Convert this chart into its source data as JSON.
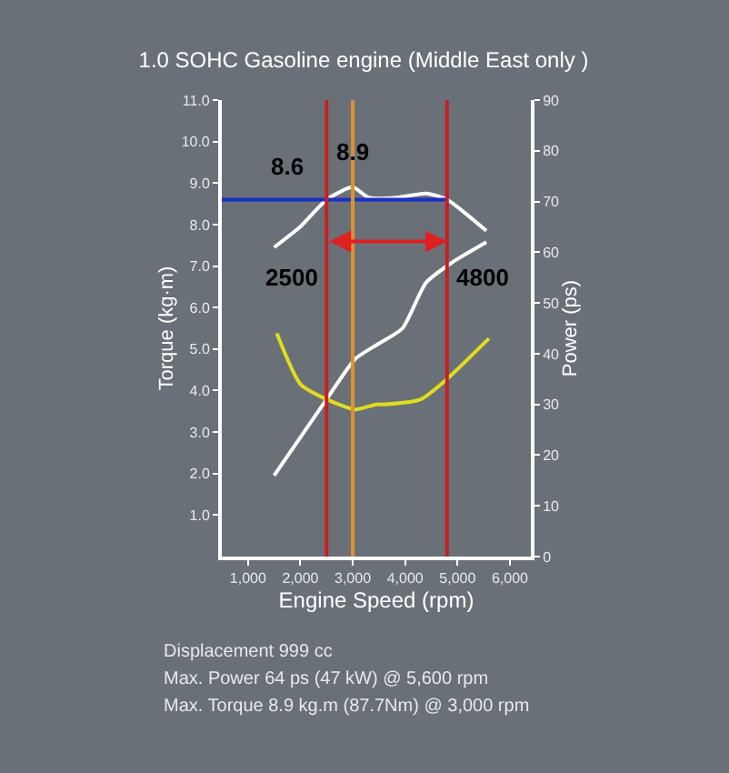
{
  "chart_data": {
    "type": "line",
    "title": "1.0 SOHC Gasoline engine (Middle East only )",
    "xlabel": "Engine Speed (rpm)",
    "ylabel": "Torque (kg·m)",
    "y2label": "Power (ps)",
    "xlim": [
      500,
      6400
    ],
    "xticks": [
      {
        "value": 1000,
        "label": "1,000"
      },
      {
        "value": 2000,
        "label": "2,000"
      },
      {
        "value": 3000,
        "label": "3,000"
      },
      {
        "value": 4000,
        "label": "4,000"
      },
      {
        "value": 5000,
        "label": "5,000"
      },
      {
        "value": 6000,
        "label": "6,000"
      }
    ],
    "ylim": [
      0,
      11
    ],
    "yticks": [
      {
        "value": 1,
        "label": "1.0"
      },
      {
        "value": 2,
        "label": "2.0"
      },
      {
        "value": 3,
        "label": "3.0"
      },
      {
        "value": 4,
        "label": "4.0"
      },
      {
        "value": 5,
        "label": "5.0"
      },
      {
        "value": 6,
        "label": "6.0"
      },
      {
        "value": 7,
        "label": "7.0"
      },
      {
        "value": 8,
        "label": "8.0"
      },
      {
        "value": 9,
        "label": "9.0"
      },
      {
        "value": 10,
        "label": "10.0"
      },
      {
        "value": 11,
        "label": "11.0"
      }
    ],
    "y2lim": [
      0,
      90
    ],
    "y2ticks": [
      0,
      10,
      20,
      30,
      40,
      50,
      60,
      70,
      80,
      90
    ],
    "grid": false,
    "legend": false,
    "marker": "none",
    "line_style": "solid",
    "series": [
      {
        "color": "#ffffff",
        "x": [
          1500,
          2000,
          2500,
          3000,
          3300,
          3850,
          4400,
          4800,
          5550
        ],
        "values": [
          7.45,
          7.95,
          8.6,
          8.9,
          8.65,
          8.65,
          8.75,
          8.6,
          7.85
        ]
      },
      {
        "color": "#ffffff",
        "axis": "y2",
        "x": [
          1500,
          2500,
          3050,
          3500,
          3950,
          4400,
          4900,
          5550
        ],
        "values": [
          16,
          31,
          39,
          42,
          45,
          54,
          58,
          62
        ]
      },
      {
        "color": "#e0dc20",
        "axis": "y2",
        "x": [
          1550,
          2000,
          2500,
          3050,
          3450,
          3600,
          4300,
          4800,
          5600
        ],
        "values": [
          44,
          34,
          31,
          29,
          30,
          30,
          31,
          35,
          43
        ]
      },
      {
        "color": "#1a2ec8",
        "x": [
          500,
          4800
        ],
        "values": [
          8.6,
          8.6
        ]
      }
    ],
    "ref_lines": [
      {
        "axis": "x",
        "value": 2500,
        "color": "#c82020"
      },
      {
        "axis": "x",
        "value": 4800,
        "color": "#c82020"
      },
      {
        "axis": "x",
        "value": 3000,
        "color": "#e09030"
      }
    ],
    "annotations": [
      {
        "text": "8.6",
        "x": 2500,
        "y": 8.6
      },
      {
        "text": "8.9",
        "x": 3000,
        "y": 8.9
      },
      {
        "text": "2500",
        "x": 2500
      },
      {
        "text": "4800",
        "x": 4800
      },
      "Displacement 999 cc",
      "Max. Power 64 ps (47 kW) @ 5,600 rpm",
      "Max. Torque 8.9 kg.m (87.7Nm) @ 3,000 rpm"
    ]
  }
}
